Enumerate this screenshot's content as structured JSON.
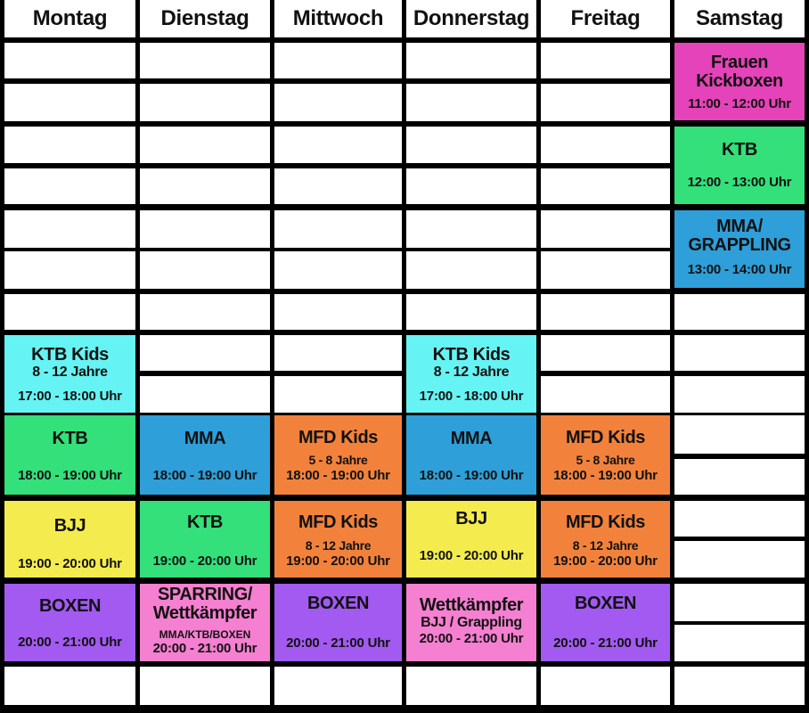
{
  "days": [
    "Montag",
    "Dienstag",
    "Mittwoch",
    "Donnerstag",
    "Freitag",
    "Samstag"
  ],
  "colors": {
    "magenta": "#e443b9",
    "green": "#33e07a",
    "blue": "#2e9fd8",
    "cyan": "#66f3f3",
    "orange": "#f2823b",
    "yellow": "#f4ec4e",
    "purple": "#a25af0",
    "pink": "#f57fd0"
  },
  "classes": {
    "sa_frauen": {
      "title1": "Frauen",
      "title2": "Kickboxen",
      "time": "11:00 - 12:00 Uhr"
    },
    "sa_ktb": {
      "title": "KTB",
      "time": "12:00 - 13:00 Uhr"
    },
    "sa_mma": {
      "title1": "MMA/",
      "title2": "GRAPPLING",
      "time": "13:00 - 14:00 Uhr"
    },
    "mo_ktbkids": {
      "title": "KTB Kids",
      "age": "8 - 12 Jahre",
      "time": "17:00 - 18:00 Uhr"
    },
    "do_ktbkids": {
      "title": "KTB Kids",
      "age": "8 - 12 Jahre",
      "time": "17:00 - 18:00 Uhr"
    },
    "mo_ktb": {
      "title": "KTB",
      "time": "18:00 - 19:00 Uhr"
    },
    "di_mma": {
      "title": "MMA",
      "time": "18:00 - 19:00 Uhr"
    },
    "mi_mfd": {
      "title": "MFD Kids",
      "age": "5 - 8 Jahre",
      "time": "18:00 - 19:00 Uhr"
    },
    "do_mma": {
      "title": "MMA",
      "time": "18:00 - 19:00 Uhr"
    },
    "fr_mfd": {
      "title": "MFD Kids",
      "age": "5 - 8 Jahre",
      "time": "18:00 - 19:00 Uhr"
    },
    "mo_bjj": {
      "title": "BJJ",
      "time": "19:00 - 20:00 Uhr"
    },
    "di_ktb": {
      "title": "KTB",
      "time": "19:00 - 20:00 Uhr"
    },
    "mi_mfd2": {
      "title": "MFD Kids",
      "age": "8 - 12 Jahre",
      "time": "19:00 - 20:00 Uhr"
    },
    "do_bjj": {
      "title": "BJJ",
      "time": "19:00 - 20:00 Uhr"
    },
    "fr_mfd2": {
      "title": "MFD Kids",
      "age": "8 - 12 Jahre",
      "time": "19:00 - 20:00 Uhr"
    },
    "mo_boxen": {
      "title": "BOXEN",
      "time": "20:00 - 21:00 Uhr"
    },
    "di_sparring": {
      "title1": "SPARRING/",
      "title2": "Wettkämpfer",
      "note": "MMA/KTB/BOXEN",
      "time": "20:00 - 21:00 Uhr"
    },
    "mi_boxen": {
      "title": "BOXEN",
      "time": "20:00 - 21:00 Uhr"
    },
    "do_wett": {
      "title": "Wettkämpfer",
      "sub": "BJJ / Grappling",
      "time": "20:00 - 21:00 Uhr"
    },
    "fr_boxen": {
      "title": "BOXEN",
      "time": "20:00 - 21:00 Uhr"
    }
  }
}
